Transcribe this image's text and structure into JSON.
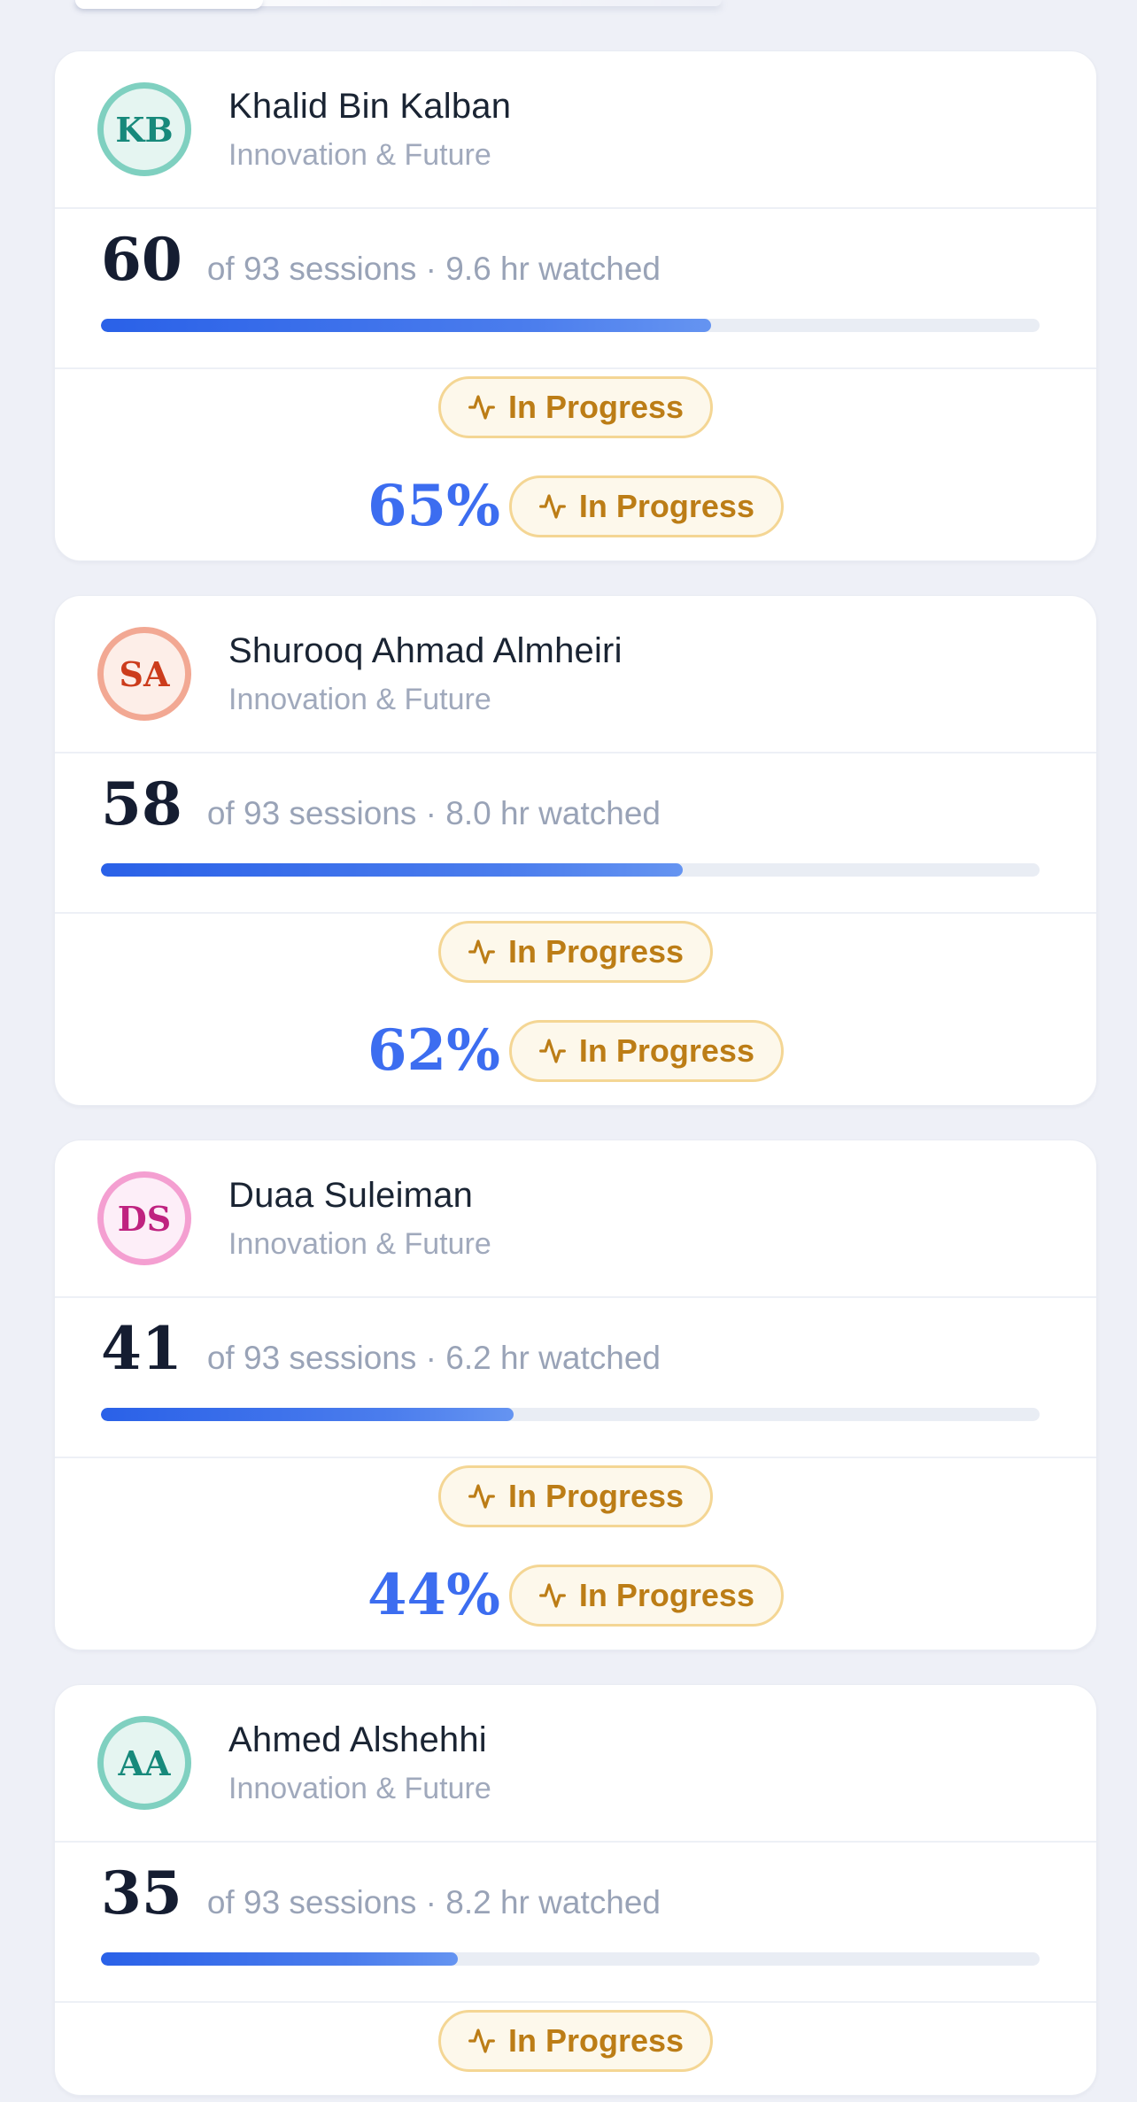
{
  "page": {
    "background_color": "#eef0f7",
    "card_color": "#ffffff"
  },
  "colors": {
    "progress_fill_start": "#2a61e8",
    "progress_fill_end": "#6594f1",
    "progress_track": "#e9edf4",
    "badge_background": "#fdf8eb",
    "badge_border": "#f4d694",
    "badge_text": "#bc7d16",
    "completion_percent_text": "#3c6df0",
    "name_text": "#1a2433",
    "muted_text": "#99a3b7"
  },
  "list": {
    "students": [
      {
        "initials": "KB",
        "name": "Khalid Bin Kalban",
        "program": "Innovation & Future",
        "sessions_count": "60",
        "sessions_detail": "of 93 sessions · 9.6 hr watched",
        "progress_pct": 65,
        "status_label": "In Progress",
        "completion_label": "65%",
        "avatar_colors": {
          "ring": "#7fd0c0",
          "bg": "#e5f5f1",
          "text": "#17897b"
        }
      },
      {
        "initials": "SA",
        "name": "Shurooq Ahmad Almheiri",
        "program": "Innovation & Future",
        "sessions_count": "58",
        "sessions_detail": "of 93 sessions · 8.0 hr watched",
        "progress_pct": 62,
        "status_label": "In Progress",
        "completion_label": "62%",
        "avatar_colors": {
          "ring": "#f2a893",
          "bg": "#fdeee8",
          "text": "#cc3c1c"
        }
      },
      {
        "initials": "DS",
        "name": "Duaa Suleiman",
        "program": "Innovation & Future",
        "sessions_count": "41",
        "sessions_detail": "of 93 sessions · 6.2 hr watched",
        "progress_pct": 44,
        "status_label": "In Progress",
        "completion_label": "44%",
        "avatar_colors": {
          "ring": "#f49fd1",
          "bg": "#fdeef8",
          "text": "#bf2380"
        }
      },
      {
        "initials": "AA",
        "name": "Ahmed Alshehhi",
        "program": "Innovation & Future",
        "sessions_count": "35",
        "sessions_detail": "of 93 sessions · 8.2 hr watched",
        "progress_pct": 38,
        "status_label": "In Progress",
        "completion_label": null,
        "avatar_colors": {
          "ring": "#7fd0c0",
          "bg": "#e5f5f1",
          "text": "#17897b"
        }
      }
    ]
  }
}
